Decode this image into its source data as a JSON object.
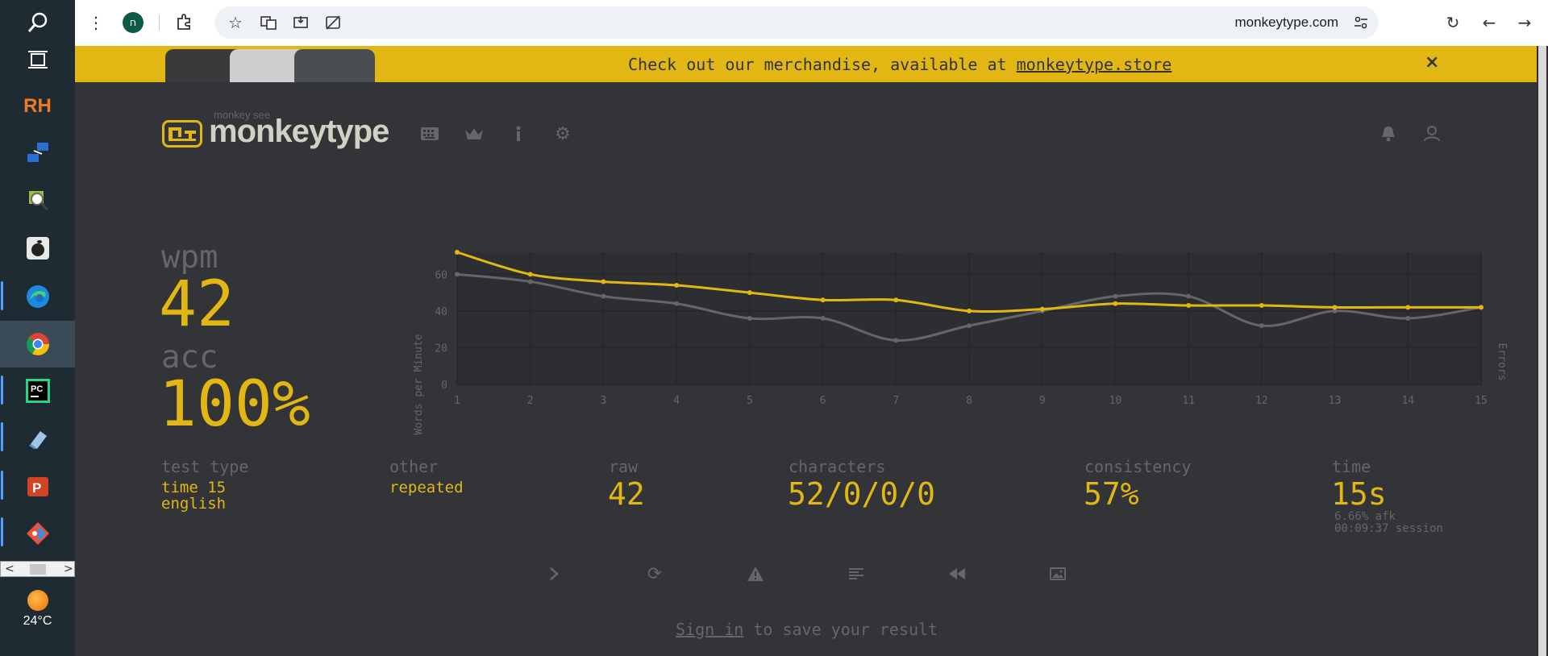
{
  "browser": {
    "url": "monkeytype.com",
    "profile_initial": "ח"
  },
  "banner": {
    "text": "Check out our merchandise, available at ",
    "link": "monkeytype.store",
    "close": "×"
  },
  "header": {
    "logo_subtitle": "monkey see",
    "logo_title": "monkeytype"
  },
  "results": {
    "wpm_label": "wpm",
    "wpm_value": "42",
    "acc_label": "acc",
    "acc_value": "100%",
    "test_type_label": "test type",
    "test_type_line1": "time 15",
    "test_type_line2": "english",
    "other_label": "other",
    "other_value": "repeated",
    "raw_label": "raw",
    "raw_value": "42",
    "characters_label": "characters",
    "characters_value": "52/0/0/0",
    "consistency_label": "consistency",
    "consistency_value": "57%",
    "time_label": "time",
    "time_value": "15s",
    "afk_text": "6.66% afk",
    "session_text": "00:09:37 session"
  },
  "signin": {
    "link": "Sign in",
    "text": " to save your result"
  },
  "weather": {
    "temp": "24°C"
  },
  "colors": {
    "accent": "#e2b714",
    "background": "#323437",
    "sub": "#646669",
    "text": "#d1d0c5"
  },
  "chart_data": {
    "type": "line",
    "x": [
      1,
      2,
      3,
      4,
      5,
      6,
      7,
      8,
      9,
      10,
      11,
      12,
      13,
      14,
      15
    ],
    "series": [
      {
        "values": [
          72,
          60,
          56,
          54,
          50,
          46,
          46,
          40,
          41,
          44,
          43,
          43,
          42,
          42,
          42
        ],
        "color": "#e2b714"
      },
      {
        "values": [
          60,
          56,
          48,
          44,
          36,
          36,
          24,
          32,
          40,
          48,
          48,
          32,
          40,
          36,
          42
        ],
        "color": "#646669"
      }
    ],
    "ylabel": "Words per Minute",
    "y2label": "Errors",
    "yticks": [
      0,
      20,
      40,
      60
    ],
    "ylim": [
      0,
      72
    ],
    "grid": true
  }
}
